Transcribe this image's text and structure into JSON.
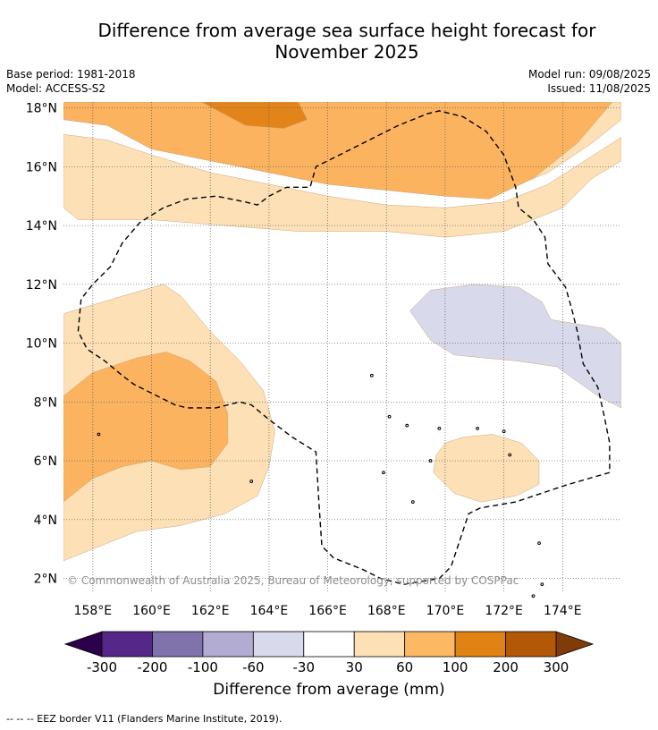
{
  "title_line1": "Difference from average sea surface height forecast for",
  "title_line2": "November 2025",
  "meta": {
    "base_period": "Base period: 1981-2018",
    "model": "Model: ACCESS-S2",
    "model_run": "Model run: 09/08/2025",
    "issued": "Issued: 11/08/2025"
  },
  "map": {
    "lon_range": [
      157,
      176
    ],
    "lat_range": [
      1.5,
      18.2
    ],
    "lat_ticks": [
      {
        "value": 2,
        "label": "2°N"
      },
      {
        "value": 4,
        "label": "4°N"
      },
      {
        "value": 6,
        "label": "6°N"
      },
      {
        "value": 8,
        "label": "8°N"
      },
      {
        "value": 10,
        "label": "10°N"
      },
      {
        "value": 12,
        "label": "12°N"
      },
      {
        "value": 14,
        "label": "14°N"
      },
      {
        "value": 16,
        "label": "16°N"
      },
      {
        "value": 18,
        "label": "18°N"
      }
    ],
    "lon_ticks": [
      {
        "value": 158,
        "label": "158°E"
      },
      {
        "value": 160,
        "label": "160°E"
      },
      {
        "value": 162,
        "label": "162°E"
      },
      {
        "value": 164,
        "label": "164°E"
      },
      {
        "value": 166,
        "label": "166°E"
      },
      {
        "value": 168,
        "label": "168°E"
      },
      {
        "value": 170,
        "label": "170°E"
      },
      {
        "value": 172,
        "label": "172°E"
      },
      {
        "value": 174,
        "label": "174°E"
      }
    ],
    "copyright": "© Commonwealth of Australia 2025, Bureau of Meteorology, supported by COSPPac",
    "contours": [
      {
        "level": "30 to 60",
        "color": "#fde0b6",
        "polygons": [
          [
            [
              157,
              17.6
            ],
            [
              158.5,
              17.4
            ],
            [
              160,
              16.6
            ],
            [
              162,
              16.2
            ],
            [
              164,
              15.8
            ],
            [
              166,
              15.4
            ],
            [
              168,
              15.2
            ],
            [
              170,
              15.0
            ],
            [
              172,
              15.2
            ],
            [
              173.5,
              15.8
            ],
            [
              175,
              16.8
            ],
            [
              176,
              17.6
            ],
            [
              176,
              18.2
            ],
            [
              157,
              18.2
            ]
          ],
          [
            [
              157,
              14.6
            ],
            [
              157.5,
              14.2
            ],
            [
              160,
              14.2
            ],
            [
              162.5,
              14.0
            ],
            [
              165,
              13.8
            ],
            [
              168,
              13.8
            ],
            [
              170,
              13.6
            ],
            [
              172,
              13.8
            ],
            [
              174,
              14.6
            ],
            [
              175,
              15.6
            ],
            [
              176,
              16.2
            ],
            [
              176,
              17.0
            ],
            [
              173.5,
              15.4
            ],
            [
              172,
              14.8
            ],
            [
              170,
              14.6
            ],
            [
              168,
              14.7
            ],
            [
              166,
              15.0
            ],
            [
              164,
              15.4
            ],
            [
              162,
              15.8
            ],
            [
              160,
              16.4
            ],
            [
              158.5,
              16.9
            ],
            [
              157,
              17.1
            ]
          ],
          [
            [
              157,
              11.0
            ],
            [
              159,
              11.6
            ],
            [
              160.4,
              12.0
            ],
            [
              161,
              11.6
            ],
            [
              162,
              10.4
            ],
            [
              163,
              9.4
            ],
            [
              163.8,
              8.4
            ],
            [
              164.2,
              7.0
            ],
            [
              164,
              5.8
            ],
            [
              163.6,
              4.8
            ],
            [
              162.5,
              4.2
            ],
            [
              161,
              3.8
            ],
            [
              159.5,
              3.6
            ],
            [
              158.5,
              3.2
            ],
            [
              157,
              2.6
            ]
          ],
          [
            [
              170,
              6.6
            ],
            [
              170.6,
              6.8
            ],
            [
              171.6,
              6.9
            ],
            [
              172.6,
              6.6
            ],
            [
              173.2,
              6.0
            ],
            [
              173.2,
              5.2
            ],
            [
              172.4,
              4.8
            ],
            [
              171.2,
              4.6
            ],
            [
              170.3,
              4.9
            ],
            [
              169.6,
              5.6
            ],
            [
              169.7,
              6.2
            ]
          ]
        ]
      },
      {
        "level": "60 to 100",
        "color": "#fbb35f",
        "polygons": [
          [
            [
              157,
              18.2
            ],
            [
              157,
              17.6
            ],
            [
              158.5,
              17.4
            ],
            [
              160,
              16.6
            ],
            [
              162,
              16.2
            ],
            [
              164,
              15.8
            ],
            [
              166,
              15.4
            ],
            [
              168,
              15.2
            ],
            [
              170,
              15.0
            ],
            [
              171.5,
              14.9
            ],
            [
              173,
              15.6
            ],
            [
              174.5,
              16.8
            ],
            [
              175.7,
              18.2
            ]
          ],
          [
            [
              157,
              8.2
            ],
            [
              158,
              9.0
            ],
            [
              159.5,
              9.5
            ],
            [
              160.5,
              9.7
            ],
            [
              161.3,
              9.4
            ],
            [
              162.2,
              8.7
            ],
            [
              162.6,
              7.6
            ],
            [
              162.6,
              6.6
            ],
            [
              162,
              5.8
            ],
            [
              161,
              5.7
            ],
            [
              160,
              6.0
            ],
            [
              159,
              5.8
            ],
            [
              158,
              5.4
            ],
            [
              157,
              4.6
            ]
          ]
        ]
      },
      {
        "level": "100 to 200",
        "color": "#e28419",
        "polygons": [
          [
            [
              161.7,
              18.2
            ],
            [
              163.2,
              17.4
            ],
            [
              164.5,
              17.3
            ],
            [
              165.3,
              17.6
            ],
            [
              165.0,
              18.2
            ]
          ]
        ]
      },
      {
        "level": "-30 to -60",
        "color": "#d9d9ec",
        "polygons": [
          [
            [
              168.8,
              11.1
            ],
            [
              169.5,
              11.8
            ],
            [
              171,
              12.0
            ],
            [
              172.5,
              11.9
            ],
            [
              173.3,
              11.4
            ],
            [
              173.6,
              10.8
            ],
            [
              175.4,
              10.5
            ],
            [
              176,
              10.0
            ],
            [
              176,
              7.8
            ],
            [
              175.2,
              8.2
            ],
            [
              173.8,
              9.2
            ],
            [
              172.4,
              9.4
            ],
            [
              171.3,
              9.5
            ],
            [
              170.3,
              9.6
            ],
            [
              169.5,
              10.1
            ]
          ]
        ]
      }
    ],
    "eez_border": [
      [
        157.5,
        10.4
      ],
      [
        157.6,
        11.5
      ],
      [
        158,
        12.0
      ],
      [
        158.6,
        12.6
      ],
      [
        159.0,
        13.4
      ],
      [
        159.6,
        14.1
      ],
      [
        160.4,
        14.6
      ],
      [
        161.2,
        14.9
      ],
      [
        162.2,
        15.0
      ],
      [
        163.2,
        14.8
      ],
      [
        163.6,
        14.7
      ],
      [
        164,
        15.0
      ],
      [
        164.6,
        15.3
      ],
      [
        165.4,
        15.3
      ],
      [
        165.6,
        16.0
      ],
      [
        166.4,
        16.4
      ],
      [
        167.4,
        16.9
      ],
      [
        168.4,
        17.4
      ],
      [
        169.4,
        17.8
      ],
      [
        169.8,
        17.9
      ],
      [
        170.6,
        17.7
      ],
      [
        171.4,
        17.2
      ],
      [
        172,
        16.4
      ],
      [
        172.4,
        15.3
      ],
      [
        172.5,
        14.6
      ],
      [
        173,
        14.2
      ],
      [
        173.4,
        13.6
      ],
      [
        173.5,
        12.7
      ],
      [
        174.1,
        11.9
      ],
      [
        174.3,
        11.2
      ],
      [
        174.5,
        10.4
      ],
      [
        174.7,
        9.3
      ],
      [
        175.2,
        8.5
      ],
      [
        175.4,
        7.6
      ],
      [
        175.6,
        6.6
      ],
      [
        175.6,
        5.6
      ],
      [
        174.2,
        5.2
      ],
      [
        173.6,
        5.0
      ],
      [
        172.4,
        4.6
      ],
      [
        171.2,
        4.4
      ],
      [
        170.8,
        4.2
      ],
      [
        170.4,
        3.0
      ],
      [
        170.2,
        2.4
      ],
      [
        169.8,
        2.0
      ],
      [
        168.6,
        1.8
      ],
      [
        167.8,
        2.0
      ],
      [
        167.2,
        2.3
      ],
      [
        166.2,
        2.7
      ],
      [
        165.8,
        3.1
      ],
      [
        165.7,
        4.6
      ],
      [
        165.6,
        6.3
      ],
      [
        164.8,
        6.8
      ],
      [
        164,
        7.4
      ],
      [
        163.4,
        7.9
      ],
      [
        163.0,
        8.0
      ],
      [
        162.6,
        7.9
      ],
      [
        162.2,
        7.8
      ],
      [
        161.2,
        7.8
      ],
      [
        160.8,
        7.9
      ],
      [
        160.2,
        8.2
      ],
      [
        159.8,
        8.4
      ],
      [
        159.4,
        8.6
      ],
      [
        159,
        8.9
      ],
      [
        158.4,
        9.4
      ],
      [
        157.8,
        9.8
      ],
      [
        157.5,
        10.4
      ]
    ],
    "islands": [
      [
        158.2,
        6.9
      ],
      [
        169.8,
        7.1
      ],
      [
        171.1,
        7.1
      ],
      [
        172,
        7.0
      ],
      [
        168.1,
        7.5
      ],
      [
        168.7,
        7.2
      ],
      [
        169.5,
        6.0
      ],
      [
        168.9,
        4.6
      ],
      [
        167.5,
        8.9
      ],
      [
        163.4,
        5.3
      ],
      [
        173.2,
        3.2
      ],
      [
        173.3,
        1.8
      ],
      [
        173.0,
        1.4
      ],
      [
        167.9,
        5.6
      ],
      [
        172.2,
        6.2
      ]
    ]
  },
  "colorbar": {
    "title": "Difference from average (mm)",
    "low_extend_color": "#2d004b",
    "high_extend_color": "#7f3b08",
    "colors": [
      "#542788",
      "#8073ac",
      "#b2abd2",
      "#d8daeb",
      "#ffffff",
      "#fee0b6",
      "#fdb863",
      "#e08214",
      "#b35806"
    ],
    "tick_labels": [
      "-300",
      "-200",
      "-100",
      "-60",
      "-30",
      "30",
      "60",
      "100",
      "200",
      "300"
    ]
  },
  "footnote": "--  --  -- EEZ border V11 (Flanders Marine Institute, 2019)."
}
